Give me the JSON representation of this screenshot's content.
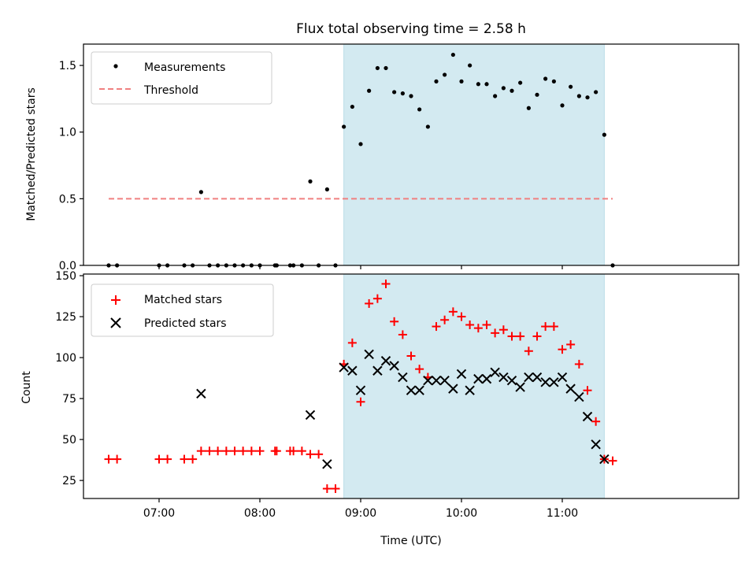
{
  "chart_data": [
    {
      "type": "scatter",
      "title": "Flux total observing time = 2.58 h",
      "xlabel": "",
      "ylabel": "Matched/Predicted stars",
      "xlim": [
        6.25,
        12.75
      ],
      "ylim": [
        0.0,
        1.66
      ],
      "yticks": [
        0.0,
        0.5,
        1.0,
        1.5
      ],
      "ytick_labels": [
        "0.0",
        "0.5",
        "1.0",
        "1.5"
      ],
      "xticks": [
        7,
        8,
        9,
        10,
        11
      ],
      "shaded_region": {
        "x_start": 8.833,
        "x_end": 11.417,
        "color": "#d3eaf1"
      },
      "threshold": {
        "y": 0.5,
        "x_start": 6.5,
        "x_end": 11.5,
        "color": "#f08080",
        "label": "Threshold"
      },
      "legend": [
        "Measurements",
        "Threshold"
      ],
      "legend_position": "top-left",
      "series": [
        {
          "name": "Measurements",
          "color": "#000000",
          "marker": "dot",
          "x": [
            6.5,
            6.583,
            7.0,
            7.083,
            7.25,
            7.333,
            7.417,
            7.5,
            7.583,
            7.667,
            7.75,
            7.833,
            7.917,
            8.0,
            8.15,
            8.167,
            8.3,
            8.333,
            8.417,
            8.5,
            8.583,
            8.667,
            8.75,
            8.833,
            8.917,
            9.0,
            9.083,
            9.167,
            9.25,
            9.333,
            9.417,
            9.5,
            9.583,
            9.667,
            9.75,
            9.833,
            9.917,
            10.0,
            10.083,
            10.167,
            10.25,
            10.333,
            10.417,
            10.5,
            10.583,
            10.667,
            10.75,
            10.833,
            10.917,
            11.0,
            11.083,
            11.167,
            11.25,
            11.333,
            11.417,
            11.5
          ],
          "y": [
            0,
            0,
            0,
            0,
            0,
            0,
            0.55,
            0,
            0,
            0,
            0,
            0,
            0,
            0,
            0,
            0,
            0,
            0,
            0,
            0.63,
            0,
            0.57,
            0,
            1.04,
            1.19,
            0.91,
            1.31,
            1.48,
            1.48,
            1.3,
            1.29,
            1.27,
            1.17,
            1.04,
            1.38,
            1.43,
            1.58,
            1.38,
            1.5,
            1.36,
            1.36,
            1.27,
            1.33,
            1.31,
            1.37,
            1.18,
            1.28,
            1.4,
            1.38,
            1.2,
            1.34,
            1.27,
            1.26,
            1.3,
            0.98,
            0
          ]
        }
      ]
    },
    {
      "type": "scatter",
      "title": "",
      "xlabel": "Time (UTC)",
      "ylabel": "Count",
      "xlim": [
        6.25,
        12.75
      ],
      "ylim": [
        14,
        151
      ],
      "yticks": [
        25,
        50,
        75,
        100,
        125,
        150
      ],
      "ytick_labels": [
        "25",
        "50",
        "75",
        "100",
        "125",
        "150"
      ],
      "xticks": [
        7,
        8,
        9,
        10,
        11
      ],
      "xtick_labels": [
        "07:00",
        "08:00",
        "09:00",
        "10:00",
        "11:00"
      ],
      "shaded_region": {
        "x_start": 8.833,
        "x_end": 11.417,
        "color": "#d3eaf1"
      },
      "legend": [
        "Matched stars",
        "Predicted stars"
      ],
      "legend_position": "top-left",
      "series": [
        {
          "name": "Matched stars",
          "color": "#ff0000",
          "marker": "plus",
          "x": [
            6.5,
            6.583,
            7.0,
            7.083,
            7.25,
            7.333,
            7.417,
            7.5,
            7.583,
            7.667,
            7.75,
            7.833,
            7.917,
            8.0,
            8.15,
            8.167,
            8.3,
            8.333,
            8.417,
            8.5,
            8.583,
            8.667,
            8.75,
            8.833,
            8.917,
            9.0,
            9.083,
            9.167,
            9.25,
            9.333,
            9.417,
            9.5,
            9.583,
            9.667,
            9.75,
            9.833,
            9.917,
            10.0,
            10.083,
            10.167,
            10.25,
            10.333,
            10.417,
            10.5,
            10.583,
            10.667,
            10.75,
            10.833,
            10.917,
            11.0,
            11.083,
            11.167,
            11.25,
            11.333,
            11.417,
            11.5
          ],
          "y": [
            38,
            38,
            38,
            38,
            38,
            38,
            43,
            43,
            43,
            43,
            43,
            43,
            43,
            43,
            43,
            43,
            43,
            43,
            43,
            41,
            41,
            20,
            20,
            96,
            109,
            73,
            133,
            136,
            145,
            122,
            114,
            101,
            93,
            88,
            119,
            123,
            128,
            125,
            120,
            118,
            120,
            115,
            117,
            113,
            113,
            104,
            113,
            119,
            119,
            105,
            108,
            96,
            80,
            61,
            38,
            37
          ]
        },
        {
          "name": "Predicted stars",
          "color": "#000000",
          "marker": "x",
          "x": [
            7.417,
            8.5,
            8.667,
            8.833,
            8.917,
            9.0,
            9.083,
            9.167,
            9.25,
            9.333,
            9.417,
            9.5,
            9.583,
            9.667,
            9.75,
            9.833,
            9.917,
            10.0,
            10.083,
            10.167,
            10.25,
            10.333,
            10.417,
            10.5,
            10.583,
            10.667,
            10.75,
            10.833,
            10.917,
            11.0,
            11.083,
            11.167,
            11.25,
            11.333,
            11.417
          ],
          "y": [
            78,
            65,
            35,
            94,
            92,
            80,
            102,
            92,
            98,
            95,
            88,
            80,
            80,
            86,
            86,
            86,
            81,
            90,
            80,
            87,
            87,
            91,
            88,
            86,
            82,
            88,
            88,
            85,
            85,
            88,
            81,
            76,
            64,
            47,
            38
          ]
        }
      ]
    }
  ]
}
